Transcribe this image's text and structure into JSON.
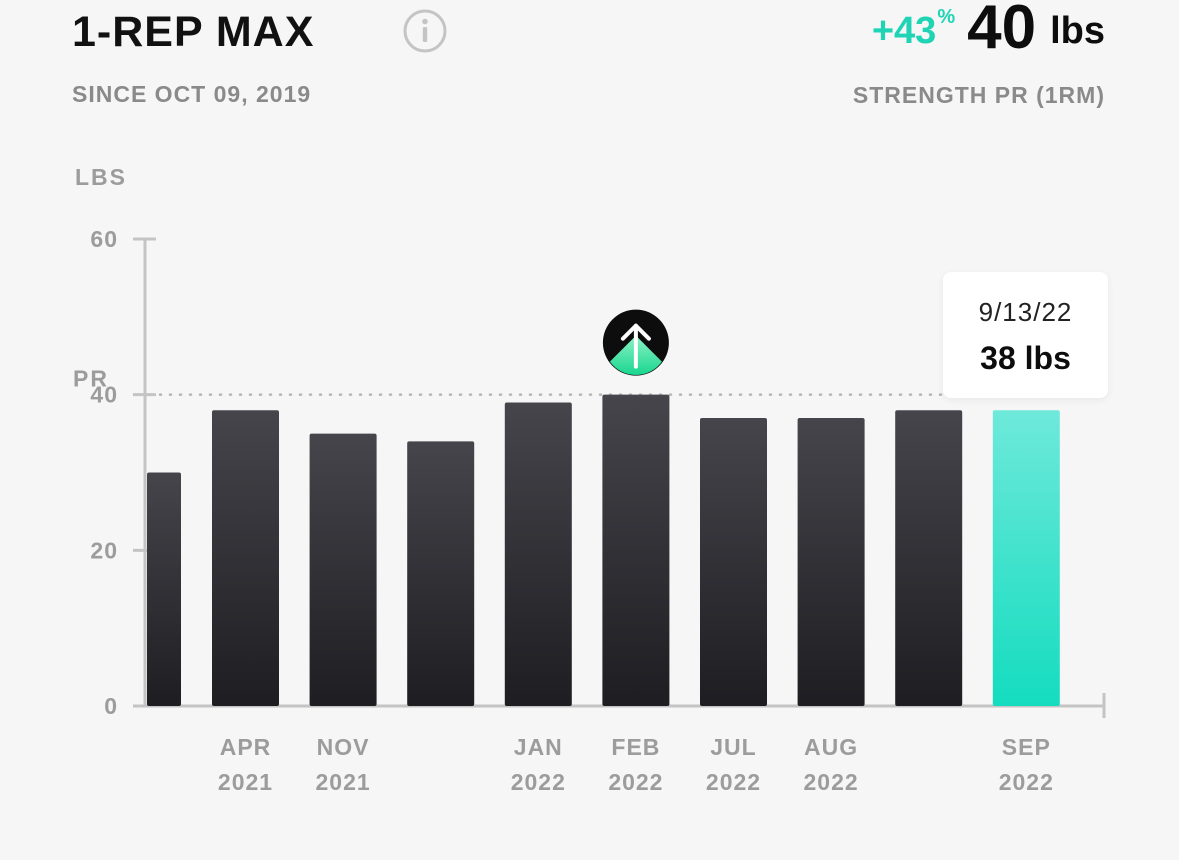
{
  "header": {
    "title": "1-REP MAX",
    "since": "SINCE OCT 09, 2019",
    "change_pct": "+43",
    "change_pct_sign": "%",
    "pr_value": "40",
    "pr_unit": "lbs",
    "pr_caption": "STRENGTH PR (1RM)"
  },
  "icons": {
    "info": "info-icon",
    "pr_marker": "arrow-up-circle-icon"
  },
  "colors": {
    "accent": "#1fd4b5",
    "bar_dark": "#2a2a30",
    "bar_selected": "#22dfc0"
  },
  "tooltip": {
    "date": "9/13/22",
    "value": "38 lbs"
  },
  "chart_data": {
    "type": "bar",
    "ylabel": "LBS",
    "ylim": [
      0,
      60
    ],
    "yticks": [
      "0",
      "20",
      "40",
      "60"
    ],
    "pr_label": "PR",
    "pr_value": 40,
    "categories": [
      [
        "",
        ""
      ],
      [
        "APR",
        "2021"
      ],
      [
        "NOV",
        "2021"
      ],
      [
        "",
        ""
      ],
      [
        "JAN",
        "2022"
      ],
      [
        "FEB",
        "2022"
      ],
      [
        "JUL",
        "2022"
      ],
      [
        "AUG",
        "2022"
      ],
      [
        "",
        ""
      ],
      [
        "SEP",
        "2022"
      ]
    ],
    "values": [
      30,
      38,
      35,
      34,
      39,
      40,
      37,
      37,
      38,
      38
    ],
    "selected_index": 9,
    "pr_index": 5,
    "grid": false
  }
}
